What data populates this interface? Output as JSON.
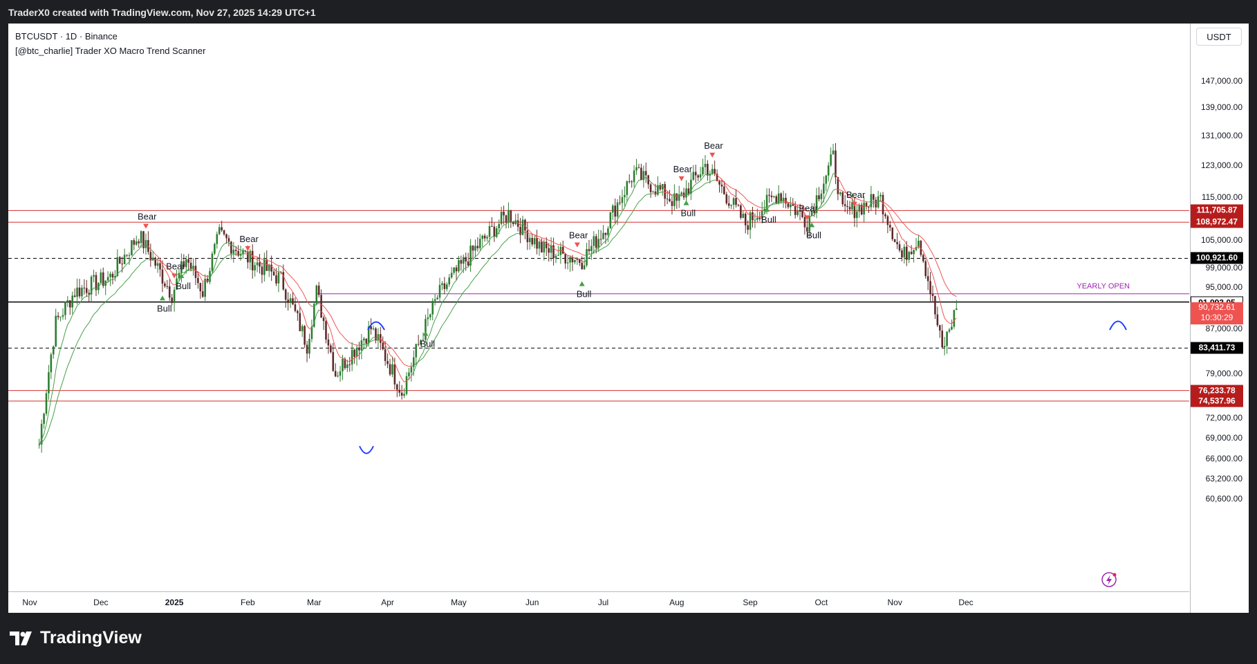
{
  "header": {
    "caption": "TraderX0 created with TradingView.com, Nov 27, 2025 14:29 UTC+1"
  },
  "legend": {
    "symbol_line": "BTCUSDT · 1D · Binance",
    "indicator_line": "[@btc_charlie] Trader XO Macro Trend Scanner"
  },
  "currency": "USDT",
  "price_ticks": [
    "147,000.00",
    "139,000.00",
    "131,000.00",
    "123,000.00",
    "115,000.00",
    "105,000.00",
    "99,000.00",
    "95,000.00",
    "87,000.00",
    "79,000.00",
    "72,000.00",
    "69,000.00",
    "66,000.00",
    "63,200.00",
    "60,600.00"
  ],
  "price_tags": {
    "resistance_1": "111,705.87",
    "resistance_2": "108,972.47",
    "level_100k": "100,921.60",
    "yearly_open": "91,993.05",
    "current_price": "90,732.61",
    "countdown": "10:30:29",
    "level_83k": "83,411.73",
    "support_1": "76,233.78",
    "support_2": "74,537.96"
  },
  "time_ticks": [
    "Nov",
    "Dec",
    "2025",
    "Feb",
    "Mar",
    "Apr",
    "May",
    "Jun",
    "Jul",
    "Aug",
    "Sep",
    "Oct",
    "Nov",
    "Dec"
  ],
  "annotations": {
    "yearly_open": "YEARLY OPEN",
    "bear": "Bear",
    "bull": "Bull"
  },
  "colors": {
    "up": "#2e7d32",
    "down": "#5d2a2a",
    "ema_fast": "#ef5350",
    "ema_green": "#43a047",
    "resistance": "#d32f2f",
    "yearly_open": "#9c27b0",
    "mark": "#1e40ff"
  },
  "footer": {
    "brand": "TradingView"
  },
  "icons": {
    "flash": "lightning-icon",
    "logo": "tradingview-logo-icon"
  },
  "chart_data": {
    "type": "candlestick",
    "symbol": "BTCUSDT",
    "interval": "1D",
    "exchange": "Binance",
    "ylim": [
      58000,
      152000
    ],
    "scale": "log",
    "price_path": [
      [
        "2024-11-05",
        68000
      ],
      [
        "2024-11-12",
        88000
      ],
      [
        "2024-11-20",
        94000
      ],
      [
        "2024-12-05",
        97000
      ],
      [
        "2024-12-17",
        106000
      ],
      [
        "2024-12-31",
        93500
      ],
      [
        "2025-01-06",
        101000
      ],
      [
        "2025-01-13",
        94000
      ],
      [
        "2025-01-20",
        106000
      ],
      [
        "2025-02-01",
        101000
      ],
      [
        "2025-02-15",
        96500
      ],
      [
        "2025-02-26",
        84000
      ],
      [
        "2025-03-02",
        94000
      ],
      [
        "2025-03-10",
        79000
      ],
      [
        "2025-03-25",
        87000
      ],
      [
        "2025-04-07",
        76000
      ],
      [
        "2025-04-22",
        93000
      ],
      [
        "2025-05-08",
        103000
      ],
      [
        "2025-05-22",
        111000
      ],
      [
        "2025-06-05",
        103000
      ],
      [
        "2025-06-22",
        100500
      ],
      [
        "2025-07-01",
        107000
      ],
      [
        "2025-07-14",
        121000
      ],
      [
        "2025-08-01",
        113500
      ],
      [
        "2025-08-13",
        123000
      ],
      [
        "2025-08-30",
        108500
      ],
      [
        "2025-09-13",
        116000
      ],
      [
        "2025-09-25",
        109000
      ],
      [
        "2025-10-06",
        125000
      ],
      [
        "2025-10-10",
        111000
      ],
      [
        "2025-10-26",
        114500
      ],
      [
        "2025-11-04",
        101000
      ],
      [
        "2025-11-11",
        105500
      ],
      [
        "2025-11-21",
        83000
      ],
      [
        "2025-11-27",
        90733
      ]
    ],
    "horizontal_levels": [
      111705.87,
      108972.47,
      100921.6,
      91993.05,
      83411.73,
      76233.78,
      74537.96
    ],
    "signals": [
      {
        "type": "Bear",
        "date": "2024-12-20"
      },
      {
        "type": "Bull",
        "date": "2024-12-27"
      },
      {
        "type": "Bear",
        "date": "2025-01-01"
      },
      {
        "type": "Bull",
        "date": "2025-01-04"
      },
      {
        "type": "Bear",
        "date": "2025-02-01"
      },
      {
        "type": "Bull",
        "date": "2025-04-17"
      },
      {
        "type": "Bear",
        "date": "2025-06-20"
      },
      {
        "type": "Bull",
        "date": "2025-06-22"
      },
      {
        "type": "Bear",
        "date": "2025-08-03"
      },
      {
        "type": "Bull",
        "date": "2025-08-05"
      },
      {
        "type": "Bear",
        "date": "2025-08-16"
      },
      {
        "type": "Bull",
        "date": "2025-09-08"
      },
      {
        "type": "Bear",
        "date": "2025-09-25"
      },
      {
        "type": "Bull",
        "date": "2025-09-27"
      },
      {
        "type": "Bear",
        "date": "2025-10-15"
      }
    ]
  }
}
